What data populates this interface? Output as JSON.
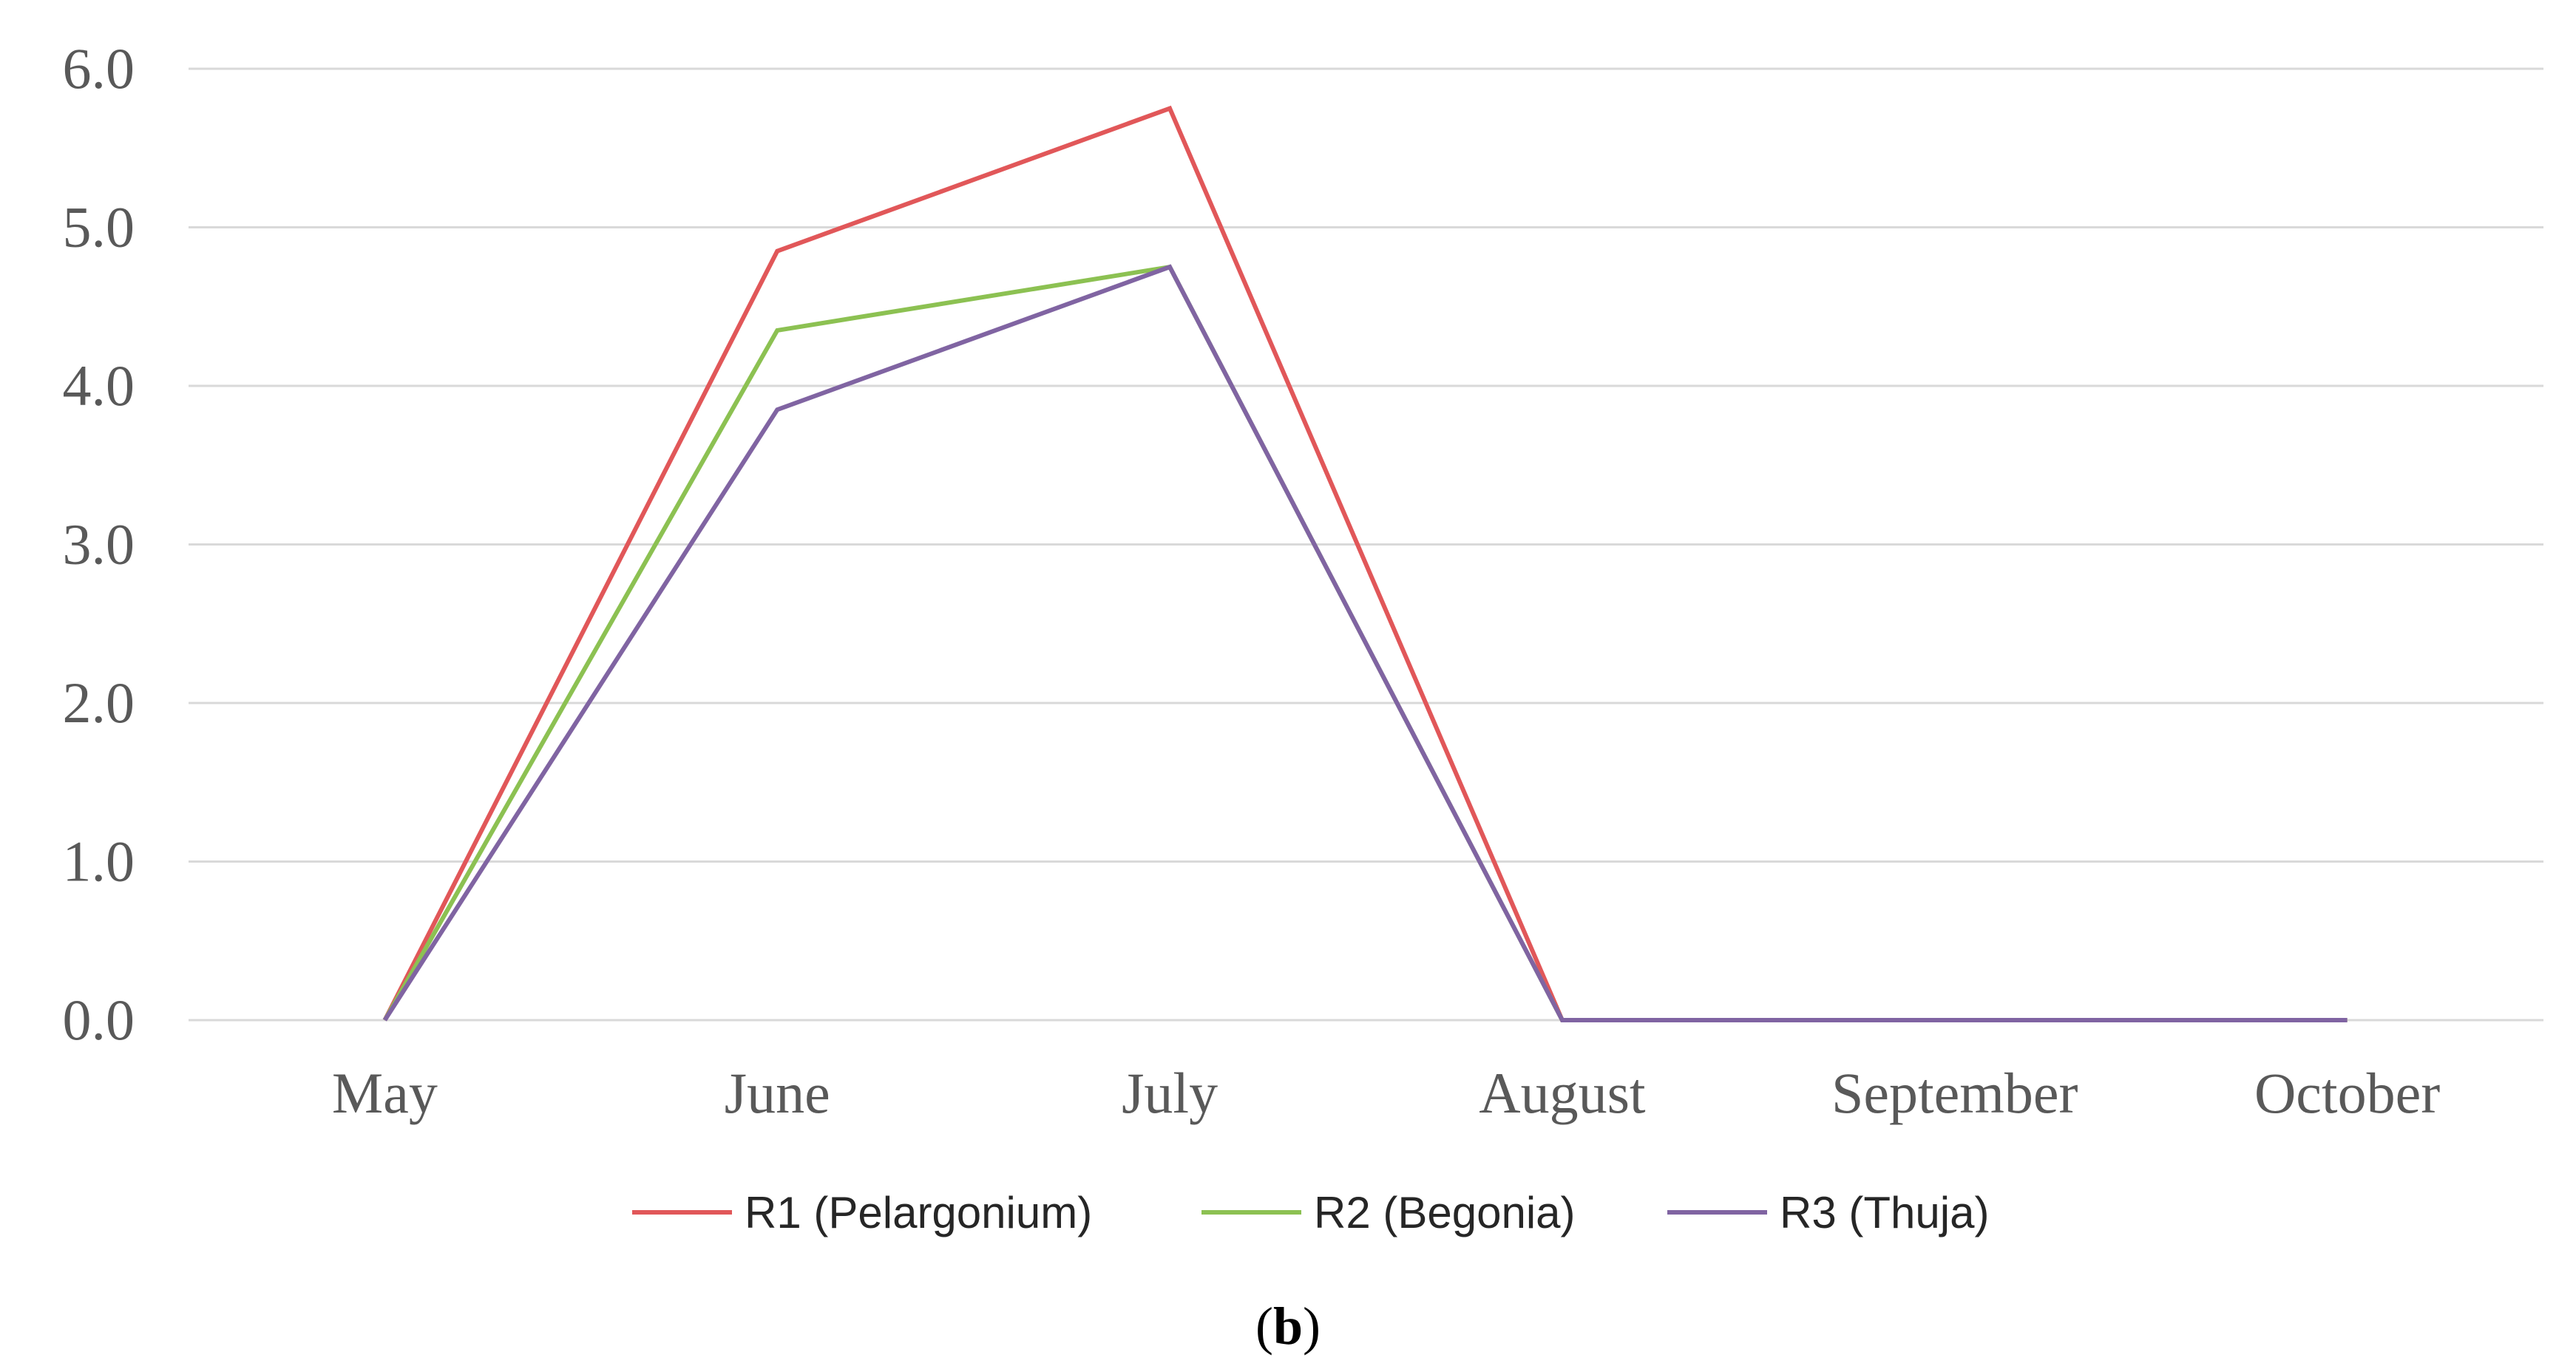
{
  "chart_data": {
    "type": "line",
    "title": "",
    "xlabel": "",
    "ylabel": "",
    "categories": [
      "May",
      "June",
      "July",
      "August",
      "September",
      "October"
    ],
    "ylim": [
      0,
      6
    ],
    "yticks": [
      "0.0",
      "1.0",
      "2.0",
      "3.0",
      "4.0",
      "5.0",
      "6.0"
    ],
    "grid": true,
    "legend_position": "bottom",
    "series": [
      {
        "name": "R1 (Pelargonium)",
        "color": "#e15759",
        "values": [
          0,
          4.85,
          5.75,
          0,
          0,
          0
        ]
      },
      {
        "name": "R2 (Begonia)",
        "color": "#8cc152",
        "values": [
          0,
          4.35,
          4.75,
          0,
          0,
          0
        ]
      },
      {
        "name": "R3 (Thuja)",
        "color": "#8064a2",
        "values": [
          0,
          3.85,
          4.75,
          0,
          0,
          0
        ]
      }
    ]
  },
  "caption": {
    "open": "(",
    "letter": "b",
    "close": ")"
  }
}
